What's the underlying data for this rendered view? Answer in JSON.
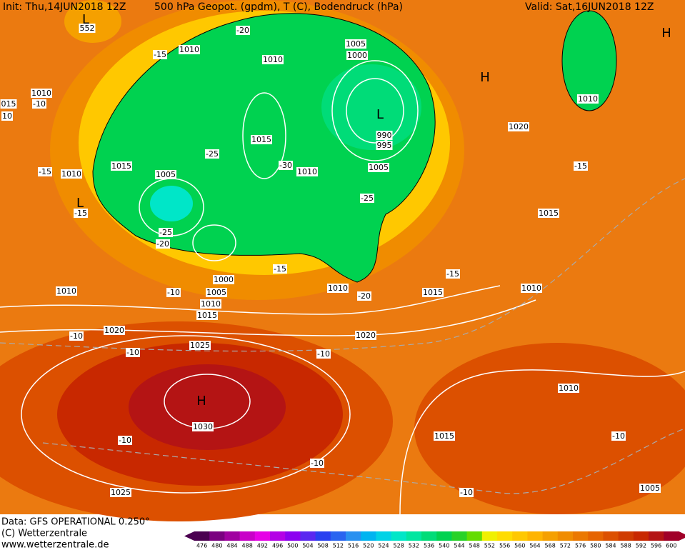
{
  "header": {
    "init": "Init: Thu,14JUN2018 12Z",
    "fields": "500 hPa Geopot. (gpdm), T (C), Bodendruck (hPa)",
    "valid": "Valid: Sat,16JUN2018 12Z"
  },
  "footer": {
    "data": "Data: GFS OPERATIONAL 0.250°",
    "copyright": "(C) Wetterzentrale",
    "url": "www.wetterzentrale.de"
  },
  "pressure_labels": [
    "552",
    "1010",
    "1010",
    "1005",
    "1000",
    "1010",
    "015",
    "1015",
    "990",
    "995",
    "1005",
    "1010",
    "1015",
    "1010",
    "1005",
    "1020",
    "1010",
    "1015",
    "1000",
    "1005",
    "1010",
    "1010",
    "1015",
    "1020",
    "1025",
    "1020",
    "1010",
    "1015",
    "1010",
    "1010",
    "1030",
    "1015",
    "1025",
    "1005"
  ],
  "temperature_labels": [
    "-20",
    "-15",
    "-10",
    "10",
    "-25",
    "-30",
    "-15",
    "-15",
    "-25",
    "-20",
    "-25",
    "-15",
    "-10",
    "-20",
    "-15",
    "-15",
    "-10",
    "-10",
    "-10",
    "-10",
    "-10",
    "-10",
    "-10"
  ],
  "centers": [
    "L",
    "H",
    "L",
    "H",
    "L",
    "H"
  ],
  "colorbar": {
    "labels": [
      "476",
      "480",
      "484",
      "488",
      "492",
      "496",
      "500",
      "504",
      "508",
      "512",
      "516",
      "520",
      "524",
      "528",
      "532",
      "536",
      "540",
      "544",
      "548",
      "552",
      "556",
      "560",
      "564",
      "568",
      "572",
      "576",
      "580",
      "584",
      "588",
      "592",
      "596",
      "600"
    ],
    "colors": [
      "#4b0050",
      "#7a0080",
      "#a000a0",
      "#c800c8",
      "#e600e6",
      "#b400e6",
      "#8c00f0",
      "#5a28f0",
      "#2840f0",
      "#2864f0",
      "#2890f0",
      "#00b4f0",
      "#00d2e6",
      "#00e6c8",
      "#00e6a0",
      "#00dc78",
      "#00d250",
      "#28d228",
      "#64dc00",
      "#f0f000",
      "#ffdc00",
      "#ffc800",
      "#ffb400",
      "#f5a000",
      "#f08c00",
      "#eb7800",
      "#e66400",
      "#dc5000",
      "#d03c00",
      "#c82800",
      "#b41414",
      "#a00028"
    ]
  }
}
